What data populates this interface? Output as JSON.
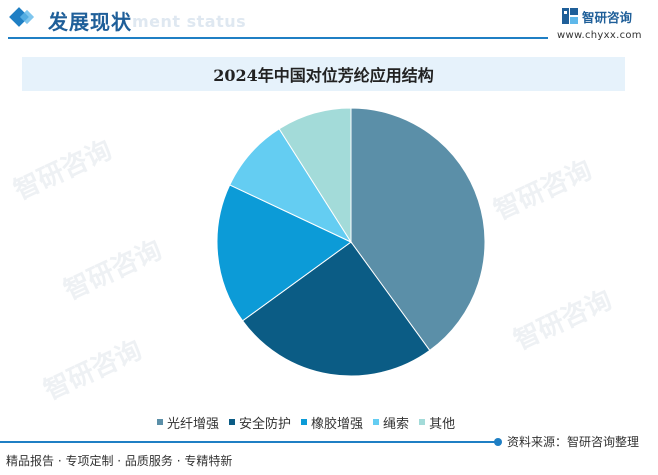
{
  "header": {
    "title": "发展现状",
    "subtitle_ghost": "ment status",
    "brand_name": "智研咨询",
    "brand_url": "www.chyxx.com"
  },
  "watermark_text": "智研咨询",
  "chart_data": {
    "type": "pie",
    "title": "2024年中国对位芳纶应用结构",
    "slices": [
      {
        "label": "光纤增强",
        "value": 40,
        "color": "#5b8fa8"
      },
      {
        "label": "安全防护",
        "value": 25,
        "color": "#0b5c85"
      },
      {
        "label": "橡胶增强",
        "value": 17,
        "color": "#0c9bd7"
      },
      {
        "label": "绳索",
        "value": 9,
        "color": "#64cdf2"
      },
      {
        "label": "其他",
        "value": 9,
        "color": "#a3dbd9"
      }
    ],
    "legend_position": "bottom"
  },
  "footer": {
    "source": "资料来源：智研咨询整理",
    "slogan": "精品报告 · 专项定制 · 品质服务 · 专精特新"
  }
}
